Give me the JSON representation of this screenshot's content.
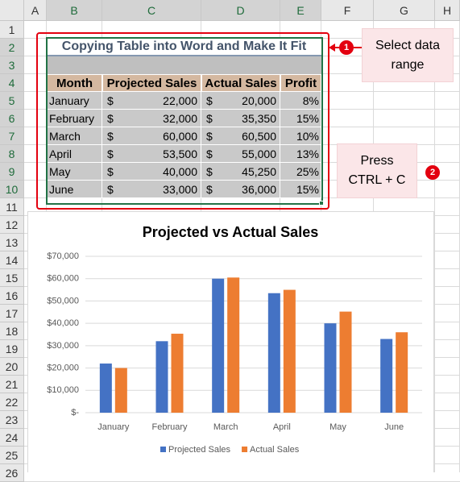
{
  "sheet": {
    "columns": [
      "A",
      "B",
      "C",
      "D",
      "E",
      "F",
      "G",
      "H"
    ],
    "rows": [
      1,
      2,
      3,
      4,
      5,
      6,
      7,
      8,
      9,
      10,
      11,
      12,
      13,
      14,
      15,
      16,
      17,
      18,
      19,
      20,
      21,
      22,
      23,
      24,
      25,
      26
    ]
  },
  "table": {
    "title": "Copying Table into Word and Make It Fit",
    "headers": [
      "Month",
      "Projected Sales",
      "Actual Sales",
      "Profit"
    ],
    "rows": [
      [
        "January",
        "$",
        "22,000",
        "$",
        "20,000",
        "8%"
      ],
      [
        "February",
        "$",
        "32,000",
        "$",
        "35,350",
        "15%"
      ],
      [
        "March",
        "$",
        "60,000",
        "$",
        "60,500",
        "10%"
      ],
      [
        "April",
        "$",
        "53,500",
        "$",
        "55,000",
        "13%"
      ],
      [
        "May",
        "$",
        "40,000",
        "$",
        "45,250",
        "25%"
      ],
      [
        "June",
        "$",
        "33,000",
        "$",
        "36,000",
        "15%"
      ]
    ]
  },
  "callouts": [
    {
      "number": "1",
      "lines": [
        "Select data",
        "range"
      ]
    },
    {
      "number": "2",
      "lines": [
        "Press",
        "CTRL + C"
      ]
    }
  ],
  "chart_data": {
    "type": "bar",
    "title": "Projected vs Actual Sales",
    "categories": [
      "January",
      "February",
      "March",
      "April",
      "May",
      "June"
    ],
    "series": [
      {
        "name": "Projected Sales",
        "color": "#4472c4",
        "values": [
          22000,
          32000,
          60000,
          53500,
          40000,
          33000
        ]
      },
      {
        "name": "Actual Sales",
        "color": "#ed7d31",
        "values": [
          20000,
          35350,
          60500,
          55000,
          45250,
          36000
        ]
      }
    ],
    "ylim": [
      0,
      70000
    ],
    "yticks": [
      {
        "value": 0,
        "label": "$-"
      },
      {
        "value": 10000,
        "label": "$10,000"
      },
      {
        "value": 20000,
        "label": "$20,000"
      },
      {
        "value": 30000,
        "label": "$30,000"
      },
      {
        "value": 40000,
        "label": "$40,000"
      },
      {
        "value": 50000,
        "label": "$50,000"
      },
      {
        "value": 60000,
        "label": "$60,000"
      },
      {
        "value": 70000,
        "label": "$70,000"
      }
    ],
    "grid": true,
    "legend": "bottom"
  }
}
